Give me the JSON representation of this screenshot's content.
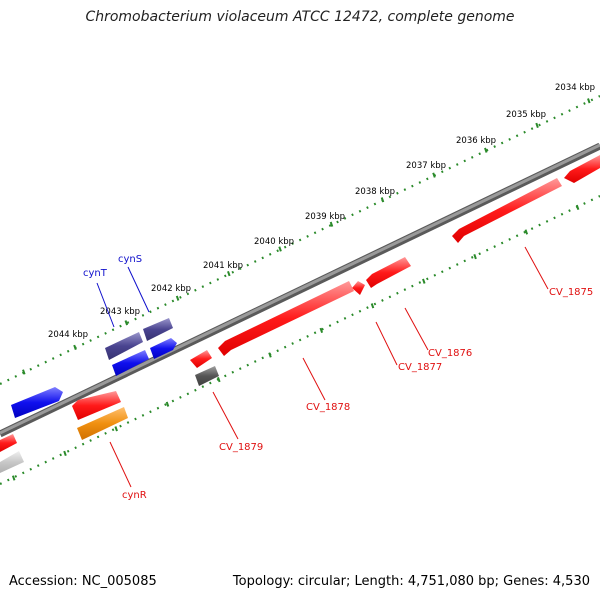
{
  "title": "Chromobacterium violaceum ATCC 12472, complete genome",
  "footer": {
    "accession": "Accession: NC_005085",
    "summary": "Topology: circular; Length: 4,751,080 bp; Genes: 4,530"
  },
  "colors": {
    "backbone": "#7a7a7a",
    "ruler": "#2a8a2a",
    "gene_red": "#ff1a1a",
    "gene_blue": "#1010ee",
    "gene_slate": "#4a4490",
    "gene_orange": "#f09010",
    "gene_gray": "#555555",
    "gene_lightgray": "#c8c8c8",
    "label_red": "#e01010",
    "label_blue": "#1010cc"
  },
  "ruler_labels": [
    "2034 kbp",
    "2035 kbp",
    "2036 kbp",
    "2037 kbp",
    "2038 kbp",
    "2039 kbp",
    "2040 kbp",
    "2041 kbp",
    "2042 kbp",
    "2043 kbp",
    "2044 kbp"
  ],
  "gene_labels": {
    "cv1875": "CV_1875",
    "cv1876": "CV_1876",
    "cv1877": "CV_1877",
    "cv1878": "CV_1878",
    "cv1879": "CV_1879",
    "cynR": "cynR",
    "cynT": "cynT",
    "cynS": "cynS"
  }
}
